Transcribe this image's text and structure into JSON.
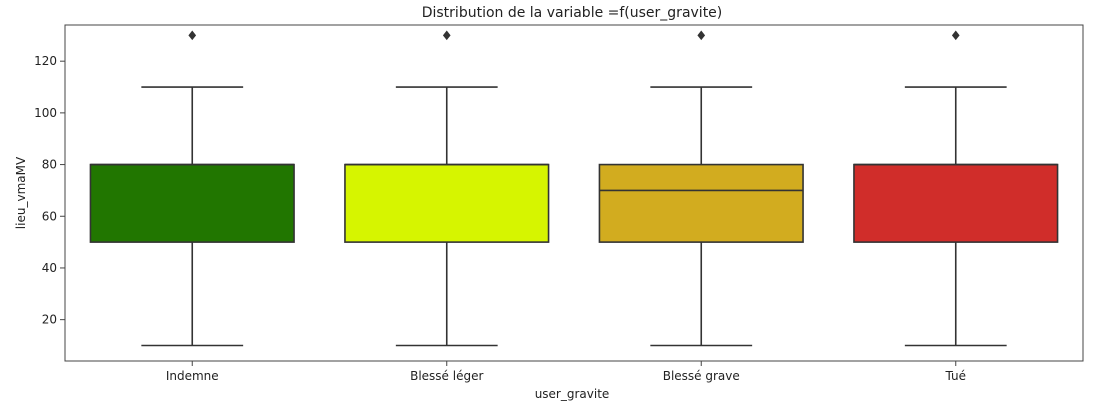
{
  "chart_data": {
    "type": "box",
    "title": "Distribution de la variable =f(user_gravite)",
    "xlabel": "user_gravite",
    "ylabel": "lieu_vmaMV",
    "ylim": [
      4,
      134
    ],
    "yticks": [
      20,
      40,
      60,
      80,
      100,
      120
    ],
    "grid": false,
    "categories": [
      "Indemne",
      "Blessé léger",
      "Blessé grave",
      "Tué"
    ],
    "boxes": [
      {
        "category": "Indemne",
        "color": "#217600",
        "whisker_low": 10,
        "q1": 50,
        "median": 80,
        "q3": 80,
        "whisker_high": 110,
        "outliers": [
          130
        ]
      },
      {
        "category": "Blessé léger",
        "color": "#d6f500",
        "whisker_low": 10,
        "q1": 50,
        "median": 80,
        "q3": 80,
        "whisker_high": 110,
        "outliers": [
          130
        ]
      },
      {
        "category": "Blessé grave",
        "color": "#d2ac1f",
        "whisker_low": 10,
        "q1": 50,
        "median": 70,
        "q3": 80,
        "whisker_high": 110,
        "outliers": [
          130
        ]
      },
      {
        "category": "Tué",
        "color": "#d02d2a",
        "whisker_low": 10,
        "q1": 50,
        "median": 80,
        "q3": 80,
        "whisker_high": 110,
        "outliers": [
          130
        ]
      }
    ],
    "styles": {
      "edge_color": "#333333",
      "frame_color": "#444444",
      "text_color": "#222222",
      "background": "#ffffff"
    }
  }
}
